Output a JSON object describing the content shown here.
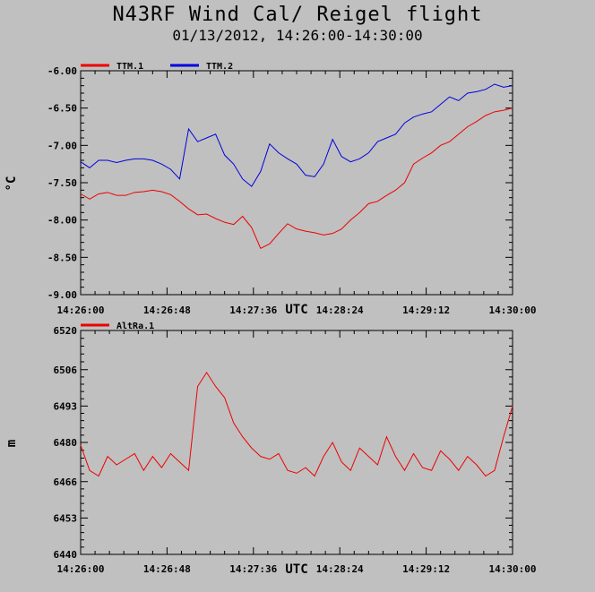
{
  "title": "N43RF Wind Cal/ Reigel flight",
  "subtitle": "01/13/2012, 14:26:00-14:30:00",
  "chart_data": [
    {
      "type": "line",
      "ylabel": "°C",
      "xlabel": "UTC",
      "x_ticks": [
        "14:26:00",
        "14:26:48",
        "14:27:36",
        "14:28:24",
        "14:29:12",
        "14:30:00"
      ],
      "x_tick_seconds": [
        0,
        48,
        96,
        144,
        192,
        240
      ],
      "y_ticks": [
        "-6.00",
        "-6.50",
        "-7.00",
        "-7.50",
        "-8.00",
        "-8.50",
        "-9.00"
      ],
      "ylim": [
        -9.0,
        -6.0
      ],
      "grid": false,
      "legend_position": "top-left",
      "series": [
        {
          "name": "TTM.1",
          "color": "#ee0000",
          "x": [
            0,
            5,
            10,
            15,
            20,
            25,
            30,
            35,
            40,
            45,
            50,
            55,
            60,
            65,
            70,
            75,
            80,
            85,
            90,
            95,
            100,
            105,
            110,
            115,
            120,
            125,
            130,
            135,
            140,
            145,
            150,
            155,
            160,
            165,
            170,
            175,
            180,
            185,
            190,
            195,
            200,
            205,
            210,
            215,
            220,
            225,
            230,
            235,
            240
          ],
          "y": [
            -7.65,
            -7.72,
            -7.65,
            -7.63,
            -7.67,
            -7.67,
            -7.63,
            -7.62,
            -7.6,
            -7.62,
            -7.66,
            -7.75,
            -7.85,
            -7.93,
            -7.92,
            -7.98,
            -8.03,
            -8.06,
            -7.95,
            -8.1,
            -8.38,
            -8.32,
            -8.18,
            -8.05,
            -8.12,
            -8.15,
            -8.17,
            -8.2,
            -8.18,
            -8.12,
            -8.0,
            -7.9,
            -7.78,
            -7.75,
            -7.67,
            -7.6,
            -7.5,
            -7.25,
            -7.17,
            -7.1,
            -7.0,
            -6.95,
            -6.85,
            -6.75,
            -6.68,
            -6.6,
            -6.55,
            -6.53,
            -6.5
          ]
        },
        {
          "name": "TTM.2",
          "color": "#0000dd",
          "x": [
            0,
            5,
            10,
            15,
            20,
            25,
            30,
            35,
            40,
            45,
            50,
            55,
            60,
            65,
            70,
            75,
            80,
            85,
            90,
            95,
            100,
            105,
            110,
            115,
            120,
            125,
            130,
            135,
            140,
            145,
            150,
            155,
            160,
            165,
            170,
            175,
            180,
            185,
            190,
            195,
            200,
            205,
            210,
            215,
            220,
            225,
            230,
            235,
            240
          ],
          "y": [
            -7.22,
            -7.3,
            -7.2,
            -7.2,
            -7.23,
            -7.2,
            -7.18,
            -7.18,
            -7.2,
            -7.25,
            -7.32,
            -7.45,
            -6.78,
            -6.95,
            -6.9,
            -6.85,
            -7.13,
            -7.25,
            -7.45,
            -7.55,
            -7.35,
            -6.98,
            -7.1,
            -7.18,
            -7.25,
            -7.4,
            -7.42,
            -7.25,
            -6.92,
            -7.15,
            -7.22,
            -7.18,
            -7.1,
            -6.95,
            -6.9,
            -6.85,
            -6.7,
            -6.62,
            -6.58,
            -6.55,
            -6.45,
            -6.35,
            -6.4,
            -6.3,
            -6.28,
            -6.25,
            -6.18,
            -6.22,
            -6.2
          ]
        }
      ]
    },
    {
      "type": "line",
      "ylabel": "m",
      "xlabel": "UTC",
      "x_ticks": [
        "14:26:00",
        "14:26:48",
        "14:27:36",
        "14:28:24",
        "14:29:12",
        "14:30:00"
      ],
      "x_tick_seconds": [
        0,
        48,
        96,
        144,
        192,
        240
      ],
      "y_ticks": [
        "6520",
        "6506",
        "6493",
        "6480",
        "6466",
        "6453",
        "6440"
      ],
      "ylim": [
        6440,
        6520
      ],
      "grid": false,
      "legend_position": "top-left",
      "series": [
        {
          "name": "AltRa.1",
          "color": "#ee0000",
          "x": [
            0,
            5,
            10,
            15,
            20,
            25,
            30,
            35,
            40,
            45,
            50,
            55,
            60,
            65,
            70,
            75,
            80,
            85,
            90,
            95,
            100,
            105,
            110,
            115,
            120,
            125,
            130,
            135,
            140,
            145,
            150,
            155,
            160,
            165,
            170,
            175,
            180,
            185,
            190,
            195,
            200,
            205,
            210,
            215,
            220,
            225,
            230,
            235,
            240
          ],
          "y": [
            6479,
            6470,
            6468,
            6475,
            6472,
            6474,
            6476,
            6470,
            6475,
            6471,
            6476,
            6473,
            6470,
            6500,
            6505,
            6500,
            6496,
            6487,
            6482,
            6478,
            6475,
            6474,
            6476,
            6470,
            6469,
            6471,
            6468,
            6475,
            6480,
            6473,
            6470,
            6478,
            6475,
            6472,
            6482,
            6475,
            6470,
            6476,
            6471,
            6470,
            6477,
            6474,
            6470,
            6475,
            6472,
            6468,
            6470,
            6482,
            6493
          ]
        }
      ]
    }
  ]
}
